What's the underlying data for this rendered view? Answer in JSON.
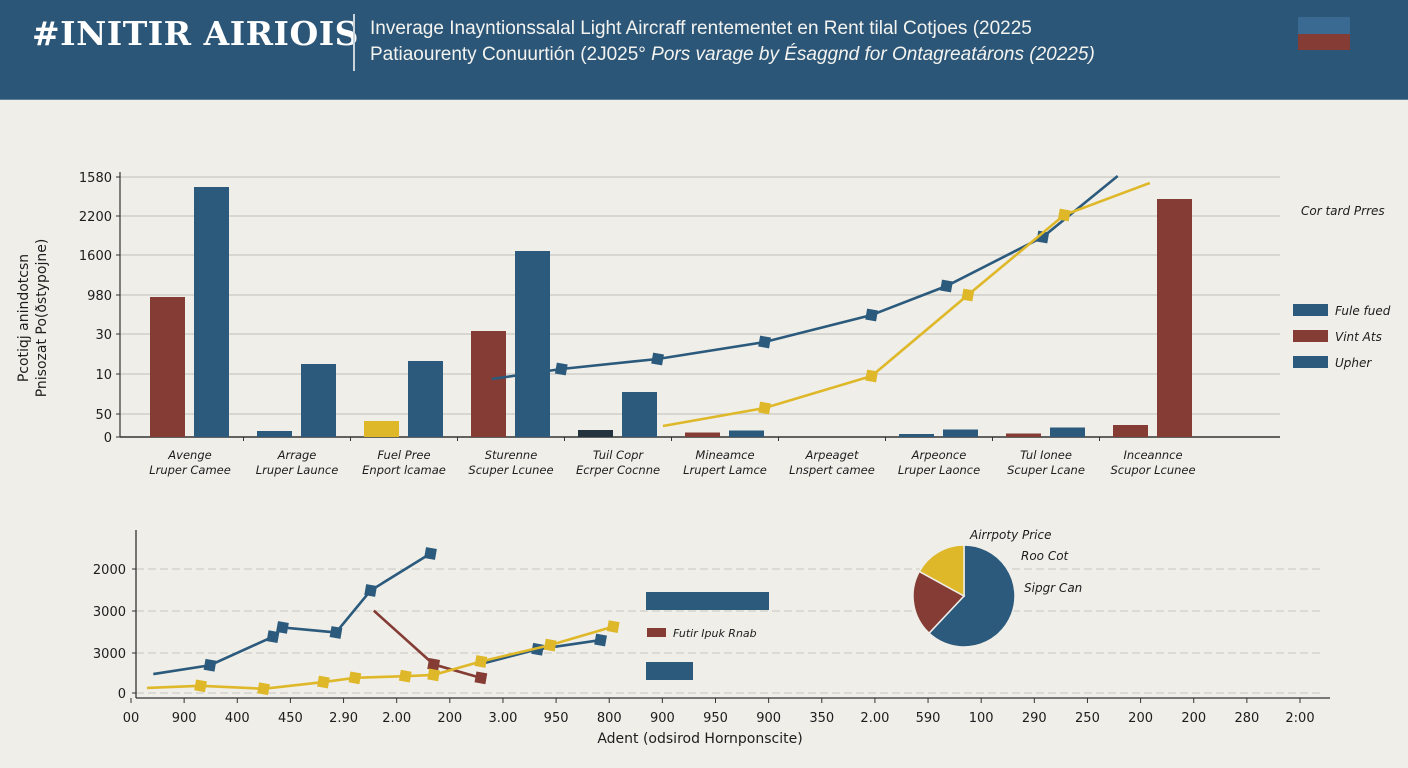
{
  "header": {
    "brand": "#INITIR AIRIOIS",
    "title_line1": "Inverage Inayntionssalal Light Aircraff rentementet en Rent tilal Cotjoes (20225",
    "title_line2_a": "Patiaourenty Conuurtión (2J025°",
    "title_line2_b": "Pors varage by Ésaggnd for Ontagreatárons (20225)",
    "flag_colors": [
      "#3a6a92",
      "#843c35"
    ]
  },
  "chart_data": [
    {
      "type": "bar",
      "title": "",
      "ylabel_line1": "Pcotiqj anindotcsn",
      "ylabel_line2": "Pnisozat Po(ðstypojne)",
      "y_ticks": [
        "1580",
        "2200",
        "1600",
        "980",
        "30",
        "10",
        "50",
        "0"
      ],
      "ylim": [
        0,
        2600
      ],
      "grid": true,
      "categories": [
        [
          "Avenge",
          "Lruper Camee"
        ],
        [
          "Arrage",
          "Lruper Launce"
        ],
        [
          "Fuel Pree",
          "Enport lcamae"
        ],
        [
          "Sturenne",
          "Scuper Lcunee"
        ],
        [
          "Tuil Copr",
          "Ecrper Cocnne"
        ],
        [
          "Mineamce",
          "Lrupert Lamce"
        ],
        [
          "Arpeaget",
          "Lnspert camee"
        ],
        [
          "Arpeonce",
          "Lruper Laonce"
        ],
        [
          "Tul Ionee",
          "Scuper Lcane"
        ],
        [
          "Inceannce",
          "Scupor Lcunee"
        ]
      ],
      "bars": [
        {
          "category": 0,
          "series": "Vint Ats",
          "value": 1400,
          "color": "#843c35"
        },
        {
          "category": 0,
          "series": "Fule fued",
          "value": 2500,
          "color": "#2b5a7c"
        },
        {
          "category": 1,
          "series": "Upher",
          "value": 60,
          "color": "#2b5a7c"
        },
        {
          "category": 1,
          "series": "Fule fued",
          "value": 730,
          "color": "#2b5a7c"
        },
        {
          "category": 2,
          "series": "Other",
          "value": 160,
          "color": "#dfb82a"
        },
        {
          "category": 2,
          "series": "Fule fued",
          "value": 760,
          "color": "#2b5a7c"
        },
        {
          "category": 3,
          "series": "Vint Ats",
          "value": 1060,
          "color": "#843c35"
        },
        {
          "category": 3,
          "series": "Fule fued",
          "value": 1860,
          "color": "#2b5a7c"
        },
        {
          "category": 4,
          "series": "Other",
          "value": 70,
          "color": "#24323d"
        },
        {
          "category": 4,
          "series": "Fule fued",
          "value": 450,
          "color": "#2b5a7c"
        },
        {
          "category": 5,
          "series": "Vint Ats",
          "value": 45,
          "color": "#843c35"
        },
        {
          "category": 5,
          "series": "Fule fued",
          "value": 65,
          "color": "#2b5a7c"
        },
        {
          "category": 7,
          "series": "Upher",
          "value": 30,
          "color": "#2b5a7c"
        },
        {
          "category": 7,
          "series": "Fule fued",
          "value": 75,
          "color": "#2b5a7c"
        },
        {
          "category": 8,
          "series": "Vint Ats",
          "value": 35,
          "color": "#843c35"
        },
        {
          "category": 8,
          "series": "Fule fued",
          "value": 95,
          "color": "#2b5a7c"
        },
        {
          "category": 9,
          "series": "Vint Ats",
          "value": 120,
          "color": "#843c35"
        },
        {
          "category": 9,
          "series": "Vint Ats",
          "value": 2380,
          "color": "#843c35"
        }
      ],
      "lines": [
        {
          "name": "blue-trend",
          "color": "#2b5a7c",
          "points": [
            [
              4.25,
              580
            ],
            [
              4.9,
              680
            ],
            [
              5.8,
              780
            ],
            [
              6.8,
              950
            ],
            [
              7.8,
              1220
            ],
            [
              8.5,
              1510
            ],
            [
              9.4,
              2000
            ],
            [
              10.1,
              2610
            ]
          ]
        },
        {
          "name": "yellow-trend",
          "color": "#dfb82a",
          "points": [
            [
              5.85,
              110
            ],
            [
              6.8,
              290
            ],
            [
              7.8,
              610
            ],
            [
              8.7,
              1420
            ],
            [
              9.6,
              2220
            ],
            [
              10.4,
              2540
            ]
          ]
        }
      ],
      "legend_title": "Cor tard Prres",
      "legend": [
        {
          "label": "Fule fued",
          "color": "#2b5a7c"
        },
        {
          "label": "Vint Ats",
          "color": "#843c35"
        },
        {
          "label": "Upher",
          "color": "#2b5a7c"
        }
      ],
      "legend_position": "right"
    },
    {
      "type": "line",
      "title": "",
      "xlabel": "Adent (odsirod Hornponscite)",
      "y_ticks": [
        "2000",
        "3000",
        "3000",
        "0"
      ],
      "ylim": [
        0,
        4000
      ],
      "x_ticks": [
        "00",
        "900",
        "400",
        "450",
        "2.90",
        "2.00",
        "200",
        "3.00",
        "950",
        "800",
        "900",
        "950",
        "900",
        "350",
        "2.00",
        "590",
        "100",
        "290",
        "250",
        "200",
        "200",
        "280",
        "2:00"
      ],
      "grid": true,
      "series": [
        {
          "name": "blue-a",
          "color": "#2b5a7c",
          "points": [
            [
              0.1,
              570
            ],
            [
              1.0,
              780
            ],
            [
              2.0,
              1460
            ],
            [
              2.15,
              1680
            ],
            [
              3.0,
              1560
            ],
            [
              3.55,
              2560
            ],
            [
              4.5,
              3440
            ]
          ]
        },
        {
          "name": "red",
          "color": "#843c35",
          "points": [
            [
              3.6,
              2080
            ],
            [
              4.55,
              800
            ],
            [
              5.3,
              480
            ]
          ]
        },
        {
          "name": "blue-b",
          "color": "#2b5a7c",
          "points": [
            [
              5.3,
              810
            ],
            [
              6.2,
              1160
            ],
            [
              7.2,
              1380
            ]
          ]
        },
        {
          "name": "yellow",
          "color": "#dfb82a",
          "points": [
            [
              0.0,
              240
            ],
            [
              0.85,
              290
            ],
            [
              1.85,
              220
            ],
            [
              2.8,
              380
            ],
            [
              3.3,
              480
            ],
            [
              4.1,
              520
            ],
            [
              4.55,
              550
            ],
            [
              5.3,
              870
            ],
            [
              6.4,
              1260
            ],
            [
              7.4,
              1700
            ]
          ]
        }
      ],
      "legend": [
        {
          "label": "",
          "color": "#2b5a7c"
        },
        {
          "label": "Futir Ipuk Rnab",
          "color": "#843c35"
        },
        {
          "label": "",
          "color": "#2b5a7c"
        }
      ]
    },
    {
      "type": "pie",
      "title": "Airrpoty Price",
      "labels": [
        "Roo Cot",
        "Sipgr Can"
      ],
      "slices": [
        {
          "label": "Sipgr Can",
          "value": 62,
          "color": "#2b5a7c"
        },
        {
          "label": "Roo Cot",
          "value": 21,
          "color": "#843c35"
        },
        {
          "label": "Airrpoty Price",
          "value": 17,
          "color": "#dfb82a"
        }
      ]
    }
  ]
}
